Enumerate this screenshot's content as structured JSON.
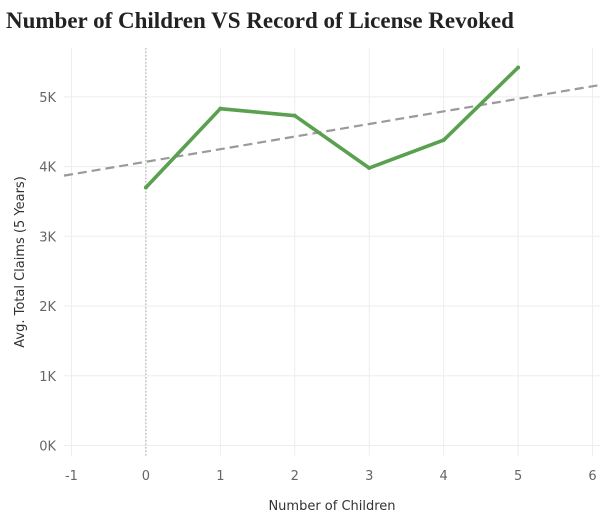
{
  "chart_data": {
    "type": "line",
    "title": "Number of Children VS Record of License Revoked",
    "xlabel": "Number of Children",
    "ylabel": "Avg. Total Claims (5 Years)",
    "x_ticks": [
      -1,
      0,
      1,
      2,
      3,
      4,
      5,
      6
    ],
    "y_ticks": [
      0,
      1000,
      2000,
      3000,
      4000,
      5000
    ],
    "y_tick_labels": [
      "0K",
      "1K",
      "2K",
      "3K",
      "4K",
      "5K"
    ],
    "xlim": [
      -1.1,
      6.1
    ],
    "ylim": [
      -150,
      5700
    ],
    "grid": true,
    "zero_line_x": 0,
    "series": [
      {
        "color": "#59a14f",
        "x": [
          0,
          1,
          2,
          3,
          4,
          5
        ],
        "y": [
          3700,
          4830,
          4730,
          3980,
          4380,
          5420
        ]
      }
    ],
    "trend_line": {
      "style": "dashed",
      "color": "#9a9a9a",
      "x": [
        -1.1,
        6.1
      ],
      "y": [
        3870,
        5170
      ]
    }
  }
}
